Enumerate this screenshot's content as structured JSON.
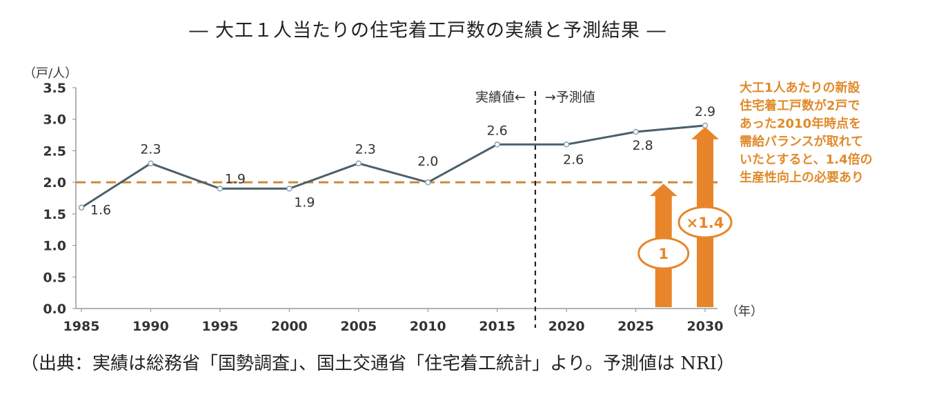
{
  "chart_data": {
    "type": "line",
    "title": "― 大工１人当たりの住宅着工戸数の実績と予測結果 ―",
    "ylabel": "（戸/人）",
    "xlabel": "（年）",
    "ylim": [
      0.0,
      3.5
    ],
    "y_ticks": [
      "0.0",
      "0.5",
      "1.0",
      "1.5",
      "2.0",
      "2.5",
      "3.0",
      "3.5"
    ],
    "x": [
      1985,
      1990,
      1995,
      2000,
      2005,
      2010,
      2015,
      2020,
      2025,
      2030
    ],
    "x_tick_labels": [
      "1985",
      "1990",
      "1995",
      "2000",
      "2005",
      "2010",
      "2015",
      "2020",
      "2025",
      "2030"
    ],
    "values": [
      1.6,
      2.3,
      1.9,
      1.9,
      2.3,
      2.0,
      2.6,
      2.6,
      2.8,
      2.9
    ],
    "data_labels": [
      "1.6",
      "2.3",
      "1.9",
      "1.9",
      "2.3",
      "2.0",
      "2.6",
      "2.6",
      "2.8",
      "2.9"
    ],
    "reference_line": 2.0,
    "actual_label": "実績値←",
    "forecast_label": "→予測値",
    "divider_between": [
      2015,
      2020
    ],
    "arrows": [
      {
        "x": 2027,
        "to": 2.0,
        "label": "1"
      },
      {
        "x": 2030,
        "to": 2.9,
        "label": "×1.4"
      }
    ],
    "annotation": [
      "大工1人あたりの新設",
      "住宅着工戸数が2戸で",
      "あった2010年時点を",
      "需給バランスが取れて",
      "いたとすると、1.4倍の",
      "生産性向上の必要あり"
    ],
    "colors": {
      "line": "#4b5f6b",
      "reference": "#c98a3a",
      "arrow": "#e8852a",
      "annotation": "#e08a2a"
    }
  },
  "source": "（出典：実績は総務省「国勢調査」、国土交通省「住宅着工統計」より。予測値は NRI）"
}
